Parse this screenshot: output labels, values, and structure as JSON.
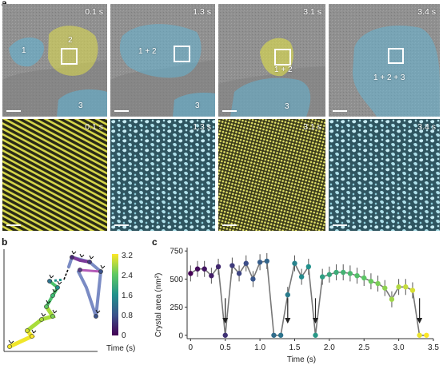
{
  "panels": {
    "a": {
      "label": "a"
    },
    "b": {
      "label": "b"
    },
    "c": {
      "label": "c"
    }
  },
  "panel_a": {
    "top_times": [
      "0.1 s",
      "1.3 s",
      "3.1 s",
      "3.4 s"
    ],
    "bottom_times": [
      "0.1 s",
      "1.3 s",
      "3.1 s",
      "3.4 s"
    ],
    "region_labels": {
      "t1": [
        "1",
        "2",
        "3"
      ],
      "t2": [
        "1 + 2",
        "3"
      ],
      "t3": [
        "1 + 2",
        "3"
      ],
      "t4": [
        "1 + 2 + 3"
      ]
    },
    "colors": {
      "crystal_fill": "#e0df4a",
      "amorphous_fill": "#5fb7d9",
      "bg_gray": "#8f8f8f"
    }
  },
  "panel_b": {
    "colorbar": {
      "ticks": [
        "0",
        "0.8",
        "1.6",
        "2.4",
        "3.2"
      ],
      "label": "Time (s)",
      "colormap": [
        "#440154",
        "#3b528b",
        "#21918c",
        "#5ec962",
        "#fde725"
      ]
    }
  },
  "chart_data": {
    "type": "line",
    "xlabel": "Time (s)",
    "ylabel": "Crystal area (nm²)",
    "xlim": [
      -0.05,
      3.5
    ],
    "ylim": [
      -30,
      780
    ],
    "xticks": [
      "0",
      "0.5",
      "1.0",
      "1.5",
      "2.0",
      "2.5",
      "3.0",
      "3.5"
    ],
    "yticks": [
      "0",
      "250",
      "500",
      "750"
    ],
    "series": [
      {
        "x": [
          0.0,
          0.1,
          0.2,
          0.3,
          0.4,
          0.5,
          0.6,
          0.7,
          0.8,
          0.9,
          1.0,
          1.1,
          1.2,
          1.3,
          1.4,
          1.5,
          1.6,
          1.7,
          1.8,
          1.9,
          2.0,
          2.1,
          2.2,
          2.3,
          2.4,
          2.5,
          2.6,
          2.7,
          2.8,
          2.9,
          3.0,
          3.1,
          3.2,
          3.3,
          3.4
        ],
        "y": [
          550,
          590,
          590,
          530,
          610,
          0,
          620,
          550,
          640,
          500,
          650,
          660,
          0,
          0,
          360,
          640,
          520,
          610,
          0,
          520,
          540,
          560,
          560,
          550,
          530,
          510,
          480,
          460,
          420,
          320,
          430,
          430,
          400,
          0,
          0
        ]
      }
    ],
    "arrows_at_x": [
      0.5,
      1.4,
      1.8,
      3.3
    ],
    "color_scale": {
      "min": 0,
      "max": 3.4
    }
  }
}
